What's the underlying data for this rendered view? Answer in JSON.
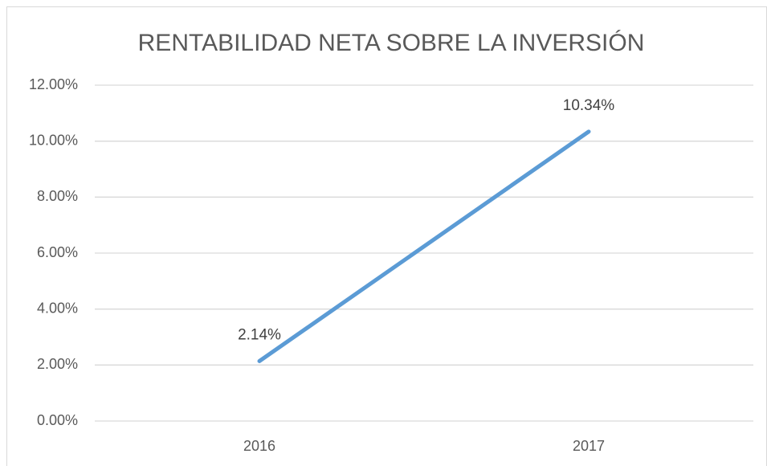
{
  "chart_data": {
    "type": "line",
    "title": "RENTABILIDAD NETA SOBRE LA INVERSIÓN",
    "categories": [
      "2016",
      "2017"
    ],
    "values": [
      2.14,
      10.34
    ],
    "value_labels": [
      "2.14%",
      "10.34%"
    ],
    "color": "#5b9bd5",
    "ylim": [
      0,
      12
    ],
    "yticks": [
      {
        "value": 0,
        "label": "0.00%"
      },
      {
        "value": 2,
        "label": "2.00%"
      },
      {
        "value": 4,
        "label": "4.00%"
      },
      {
        "value": 6,
        "label": "6.00%"
      },
      {
        "value": 8,
        "label": "8.00%"
      },
      {
        "value": 10,
        "label": "10.00%"
      },
      {
        "value": 12,
        "label": "12.00%"
      }
    ],
    "grid": true
  }
}
